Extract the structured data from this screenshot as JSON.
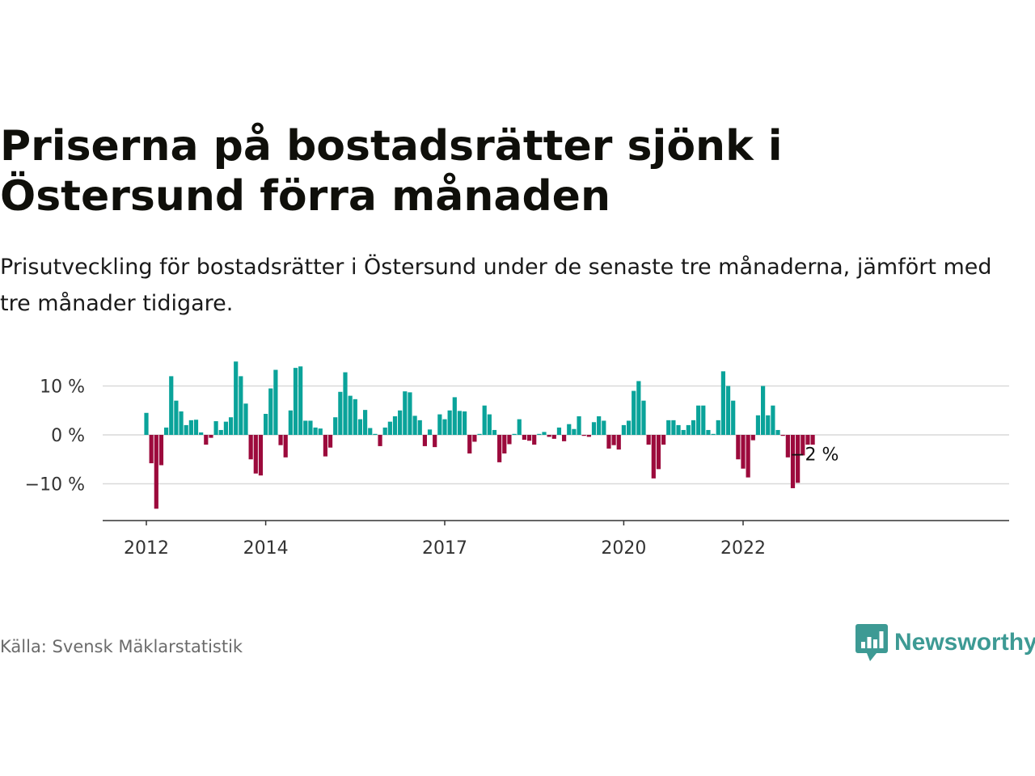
{
  "title": "Priserna på bostadsrätter sjönk i Östersund förra månaden",
  "subtitle": "Prisutveckling för bostadsrätter i Östersund under de senaste tre månaderna, jämfört med tre månader tidigare.",
  "source": "Källa: Svensk Mäklarstatistik",
  "brand": {
    "name": "Newsworthy",
    "icon": "bar-chart-bubble-icon",
    "color": "#3d9a94"
  },
  "colors": {
    "positive": "#0aa39a",
    "negative": "#9c0a3c",
    "grid": "#d9d9d9",
    "axis": "#333333"
  },
  "chart_data": {
    "type": "bar",
    "title": "",
    "xlabel": "",
    "ylabel": "",
    "ylim": [
      -17,
      16
    ],
    "yticks": [
      10,
      0,
      -10
    ],
    "ytick_labels": [
      "10 %",
      "0 %",
      "−10 %"
    ],
    "xticks": [
      "2012",
      "2014",
      "2017",
      "2020",
      "2022"
    ],
    "annotation": "−2 %",
    "grid": true,
    "legend": "none",
    "series": [
      {
        "start": "2012-01",
        "frequency": "monthly",
        "values": [
          4.5,
          -5.8,
          -15.1,
          -6.2,
          1.5,
          12.0,
          7.0,
          4.8,
          2.0,
          3.0,
          3.1,
          0.5,
          -2.0,
          -0.6,
          2.8,
          1.0,
          2.7,
          3.6,
          15.0,
          12.0,
          6.4,
          -5.0,
          -7.9,
          -8.3,
          4.3,
          9.5,
          13.3,
          -2.1,
          -4.6,
          5.0,
          13.7,
          14.0,
          2.9,
          2.9,
          1.5,
          1.3,
          -4.4,
          -2.6,
          3.6,
          8.8,
          12.8,
          8.0,
          7.3,
          3.2,
          5.1,
          1.4,
          0.2,
          -2.3,
          1.5,
          2.7,
          3.8,
          5.0,
          8.9,
          8.7,
          3.9,
          3.0,
          -2.3,
          1.1,
          -2.5,
          4.2,
          3.2,
          5.0,
          7.7,
          4.9,
          4.8,
          -3.8,
          -1.4,
          0.2,
          6.0,
          4.2,
          1.0,
          -5.6,
          -3.8,
          -1.9,
          0.2,
          3.2,
          -1.0,
          -1.2,
          -2.0,
          0.2,
          0.6,
          -0.4,
          -0.8,
          1.5,
          -1.3,
          2.2,
          1.2,
          3.8,
          -0.2,
          -0.4,
          2.6,
          3.8,
          2.9,
          -2.8,
          -2.1,
          -3.0,
          2.0,
          2.9,
          9.0,
          11.0,
          7.0,
          -2.0,
          -8.9,
          -7.0,
          -2.0,
          3.0,
          3.0,
          2.0,
          1.0,
          2.0,
          3.0,
          6.0,
          6.0,
          1.0,
          0.2,
          3.0,
          13.0,
          10.0,
          7.0,
          -5.0,
          -6.9,
          -8.7,
          -1.1,
          4.0,
          10.0,
          4.0,
          6.0,
          1.0,
          -0.2,
          -4.6,
          -10.9,
          -9.8,
          -4.2,
          -2.0,
          -2.0
        ]
      }
    ]
  }
}
